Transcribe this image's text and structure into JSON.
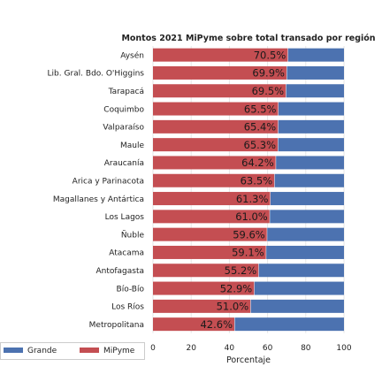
{
  "chart_data": {
    "type": "bar",
    "orientation": "horizontal",
    "stacked": true,
    "title": "Montos 2021 MiPyme sobre total transado por región",
    "xlabel": "Porcentaje",
    "ylabel": "",
    "xlim": [
      0,
      100
    ],
    "xticks": [
      "0",
      "20",
      "40",
      "60",
      "80",
      "100"
    ],
    "grid": true,
    "legend_position": "bottom-left",
    "categories": [
      "Aysén",
      "Lib. Gral. Bdo. O'Higgins",
      "Tarapacá",
      "Coquimbo",
      "Valparaíso",
      "Maule",
      "Araucanía",
      "Arica y Parinacota",
      "Magallanes y Antártica",
      "Los Lagos",
      "Ñuble",
      "Atacama",
      "Antofagasta",
      "Bío-Bío",
      "Los Ríos",
      "Metropolitana"
    ],
    "series": [
      {
        "name": "MiPyme",
        "color": "#c44e52",
        "values": [
          70.5,
          69.9,
          69.5,
          65.5,
          65.4,
          65.3,
          64.2,
          63.5,
          61.3,
          61.0,
          59.6,
          59.1,
          55.2,
          52.9,
          51.0,
          42.6
        ]
      },
      {
        "name": "Grande",
        "color": "#4c72b0",
        "values": [
          29.5,
          30.1,
          30.5,
          34.5,
          34.6,
          34.7,
          35.8,
          36.5,
          38.7,
          39.0,
          40.4,
          40.9,
          44.8,
          47.1,
          49.0,
          57.4
        ]
      }
    ],
    "data_labels": [
      "70.5%",
      "69.9%",
      "69.5%",
      "65.5%",
      "65.4%",
      "65.3%",
      "64.2%",
      "63.5%",
      "61.3%",
      "61.0%",
      "59.6%",
      "59.1%",
      "55.2%",
      "52.9%",
      "51.0%",
      "42.6%"
    ],
    "legend": [
      "Grande",
      "MiPyme"
    ]
  }
}
